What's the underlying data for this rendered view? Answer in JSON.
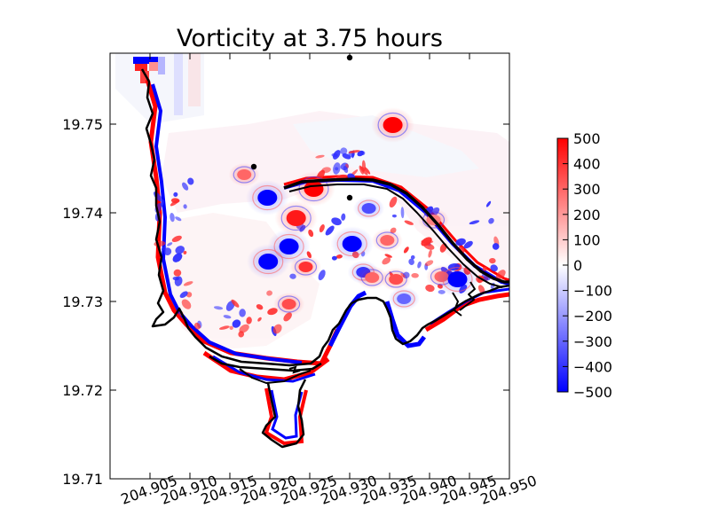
{
  "chart_data": {
    "type": "heatmap",
    "title": "Vorticity at 3.75 hours",
    "xlabel": "",
    "ylabel": "",
    "xlim": [
      204.9,
      204.95
    ],
    "ylim": [
      19.71,
      19.758
    ],
    "x_ticks": [
      204.905,
      204.91,
      204.915,
      204.92,
      204.925,
      204.93,
      204.935,
      204.94,
      204.945,
      204.95
    ],
    "x_tick_labels": [
      "204.905",
      "204.910",
      "204.915",
      "204.920",
      "204.925",
      "204.930",
      "204.935",
      "204.940",
      "204.945",
      "204.950"
    ],
    "y_ticks": [
      19.71,
      19.72,
      19.73,
      19.74,
      19.75
    ],
    "y_tick_labels": [
      "19.71",
      "19.72",
      "19.73",
      "19.74",
      "19.75"
    ],
    "colorbar": {
      "min": -500,
      "max": 500,
      "ticks": [
        500,
        400,
        300,
        200,
        100,
        0,
        -100,
        -200,
        -300,
        -400,
        -500
      ],
      "tick_labels": [
        "500",
        "400",
        "300",
        "200",
        "100",
        "0",
        "−100",
        "−200",
        "−300",
        "−400",
        "−500"
      ],
      "colormap": "bwr"
    },
    "grid": false,
    "points": [
      {
        "x": 204.93,
        "y": 19.7575
      },
      {
        "x": 204.918,
        "y": 19.7452
      },
      {
        "x": 204.93,
        "y": 19.7417
      }
    ],
    "vortices": [
      {
        "x": 204.9354,
        "y": 19.7499,
        "value": 500
      },
      {
        "x": 204.9197,
        "y": 19.7417,
        "value": -500
      },
      {
        "x": 204.9224,
        "y": 19.7362,
        "value": -500
      },
      {
        "x": 204.9198,
        "y": 19.7345,
        "value": -500
      },
      {
        "x": 204.9303,
        "y": 19.7365,
        "value": -500
      },
      {
        "x": 204.9255,
        "y": 19.7427,
        "value": 500
      },
      {
        "x": 204.9233,
        "y": 19.7394,
        "value": 450
      },
      {
        "x": 204.9245,
        "y": 19.7339,
        "value": 400
      },
      {
        "x": 204.9224,
        "y": 19.7297,
        "value": 350
      },
      {
        "x": 204.9324,
        "y": 19.7405,
        "value": -350
      },
      {
        "x": 204.9317,
        "y": 19.7333,
        "value": -400
      },
      {
        "x": 204.9358,
        "y": 19.7325,
        "value": 350
      },
      {
        "x": 204.9368,
        "y": 19.7303,
        "value": -300
      },
      {
        "x": 204.9347,
        "y": 19.7369,
        "value": 300
      },
      {
        "x": 204.9415,
        "y": 19.7328,
        "value": 300
      },
      {
        "x": 204.9435,
        "y": 19.7325,
        "value": -500
      },
      {
        "x": 204.9405,
        "y": 19.7392,
        "value": 250
      },
      {
        "x": 204.9328,
        "y": 19.7327,
        "value": 300
      },
      {
        "x": 204.9168,
        "y": 19.7443,
        "value": 300
      }
    ]
  }
}
